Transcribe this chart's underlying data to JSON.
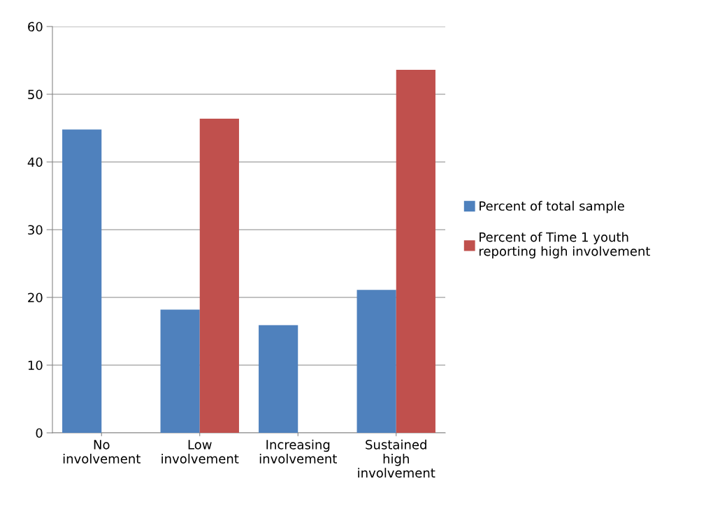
{
  "chart_data": {
    "type": "bar",
    "categories": [
      "No\ninvolvement",
      "Low\ninvolvement",
      "Increasing\ninvolvement",
      "Sustained\nhigh\ninvolvement"
    ],
    "series": [
      {
        "name": "Percent of total sample",
        "color": "#4f81bd",
        "values": [
          44.8,
          18.2,
          15.9,
          21.1
        ]
      },
      {
        "name": "Percent of Time 1 youth\nreporting high involvement",
        "color": "#c0504d",
        "values": [
          null,
          46.4,
          null,
          53.6
        ]
      }
    ],
    "ylim": [
      0,
      60
    ],
    "yticks": [
      0,
      10,
      20,
      30,
      40,
      50,
      60
    ],
    "grid": "y",
    "legend": "right"
  }
}
